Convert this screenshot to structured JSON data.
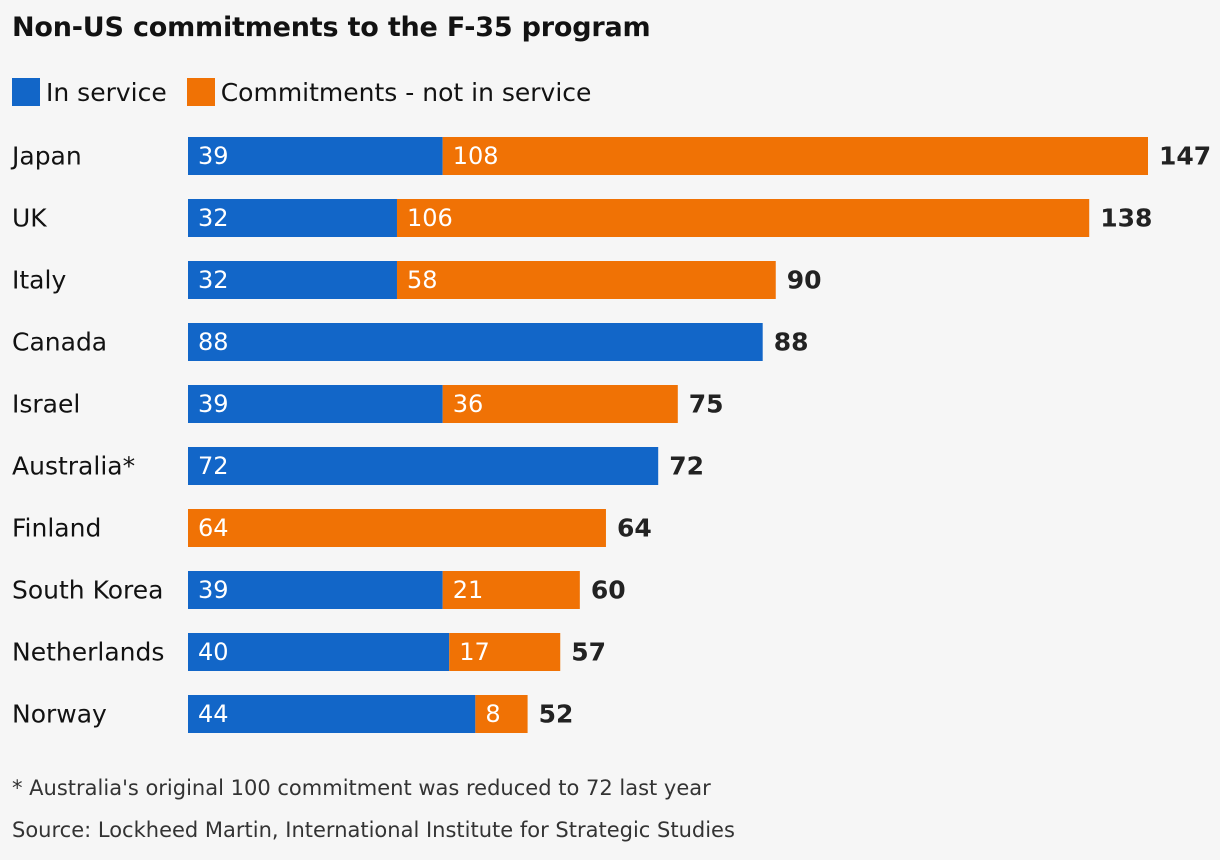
{
  "chart_data": {
    "type": "bar",
    "orientation": "horizontal",
    "stacked": true,
    "title": "Non-US commitments to the F-35 program",
    "categories": [
      "Japan",
      "UK",
      "Italy",
      "Canada",
      "Israel",
      "Australia*",
      "Finland",
      "South Korea",
      "Netherlands",
      "Norway"
    ],
    "series": [
      {
        "name": "In service",
        "color": "#1266c8",
        "values": [
          39,
          32,
          32,
          88,
          39,
          72,
          0,
          39,
          40,
          44
        ]
      },
      {
        "name": "Commitments - not in service",
        "color": "#f07205",
        "values": [
          108,
          106,
          58,
          0,
          36,
          0,
          64,
          21,
          17,
          8
        ]
      }
    ],
    "totals": [
      147,
      138,
      90,
      88,
      75,
      72,
      64,
      60,
      57,
      52
    ],
    "xlim": [
      0,
      147
    ],
    "grid": false,
    "legend_position": "top-left",
    "note": "* Australia's original 100 commitment was reduced to 72 last year",
    "source": "Source: Lockheed Martin, International Institute for Strategic Studies"
  }
}
